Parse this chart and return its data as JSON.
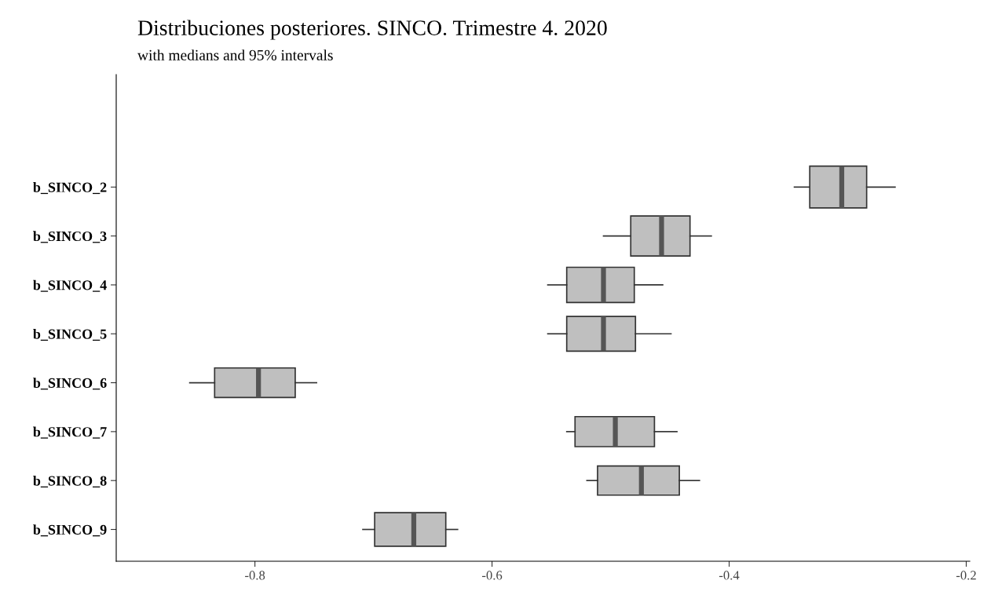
{
  "chart_data": {
    "type": "box",
    "orientation": "horizontal",
    "title": "Distribuciones posteriores. SINCO. Trimestre 4. 2020",
    "subtitle": "with medians and 95% intervals",
    "categories": [
      "b_SINCO_2",
      "b_SINCO_3",
      "b_SINCO_4",
      "b_SINCO_5",
      "b_SINCO_6",
      "b_SINCO_7",
      "b_SINCO_8",
      "b_SINCO_9"
    ],
    "boxes": [
      {
        "low": -0.345,
        "q1": -0.332,
        "median": -0.305,
        "q3": -0.284,
        "high": -0.26
      },
      {
        "low": -0.506,
        "q1": -0.483,
        "median": -0.457,
        "q3": -0.433,
        "high": -0.415
      },
      {
        "low": -0.553,
        "q1": -0.537,
        "median": -0.506,
        "q3": -0.48,
        "high": -0.456
      },
      {
        "low": -0.553,
        "q1": -0.537,
        "median": -0.506,
        "q3": -0.479,
        "high": -0.449
      },
      {
        "low": -0.855,
        "q1": -0.834,
        "median": -0.797,
        "q3": -0.766,
        "high": -0.748
      },
      {
        "low": -0.537,
        "q1": -0.53,
        "median": -0.496,
        "q3": -0.463,
        "high": -0.444
      },
      {
        "low": -0.52,
        "q1": -0.511,
        "median": -0.474,
        "q3": -0.442,
        "high": -0.425
      },
      {
        "low": -0.709,
        "q1": -0.699,
        "median": -0.666,
        "q3": -0.639,
        "high": -0.629
      }
    ],
    "color": "#bfbfbf",
    "xlim": [
      -0.917,
      -0.197
    ],
    "xticks": [
      -0.8,
      -0.6,
      -0.4,
      -0.2
    ],
    "grid": false
  }
}
